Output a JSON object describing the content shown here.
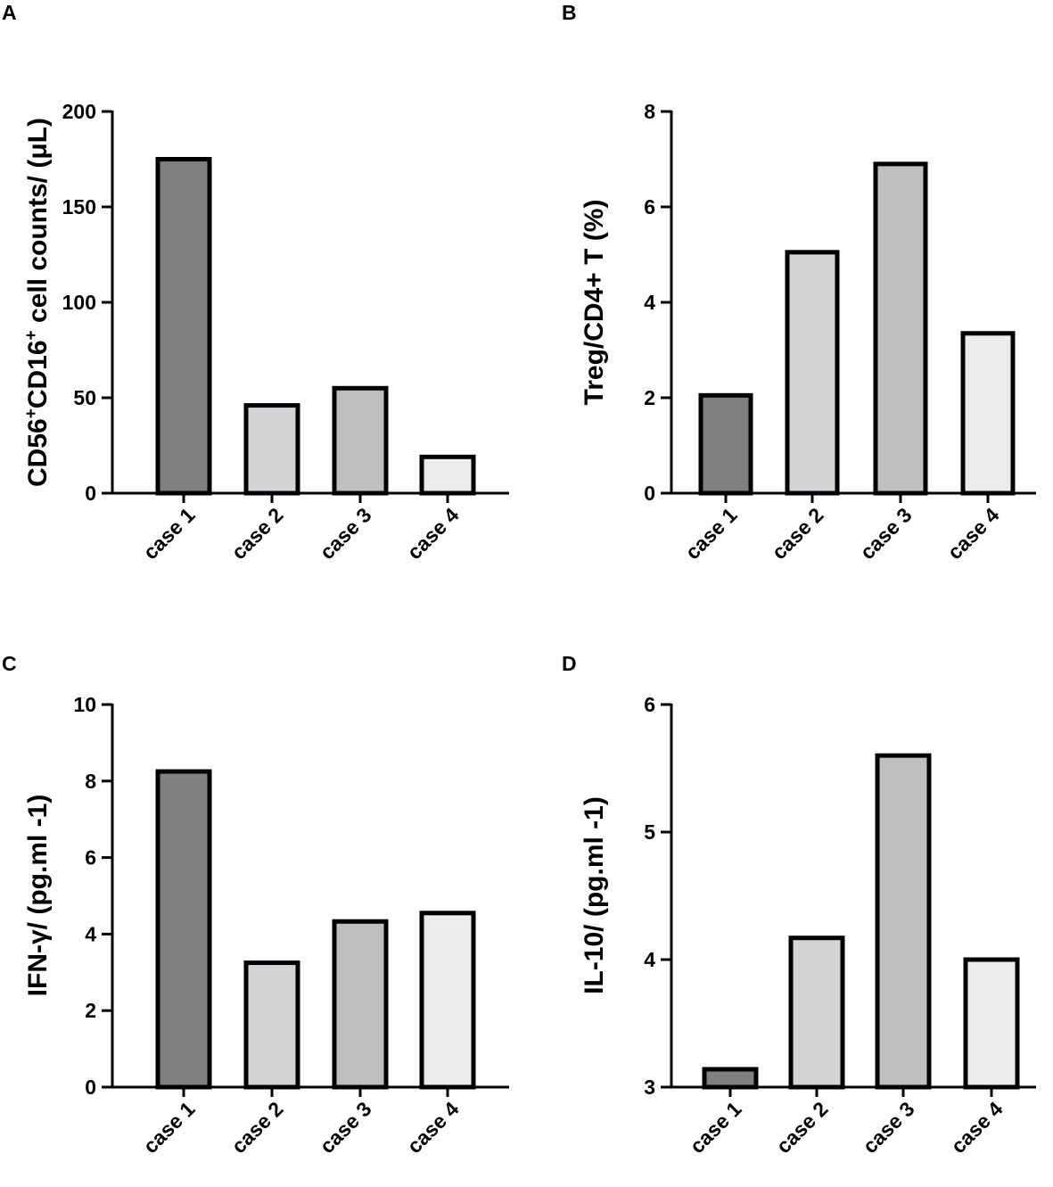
{
  "chart_data": [
    {
      "panel": "A",
      "type": "bar",
      "categories": [
        "case 1",
        "case 2",
        "case 3",
        "case 4"
      ],
      "values": [
        175,
        46,
        55,
        19
      ],
      "bar_colors": [
        "#808080",
        "#d4d4d6",
        "#bfbfbf",
        "#ebebeb"
      ],
      "ylabel_parts": [
        "CD56",
        "+",
        "CD16",
        "+",
        " cell counts/ (μL)"
      ],
      "ylim": [
        0,
        200
      ],
      "yticks": [
        0,
        50,
        100,
        150,
        200
      ],
      "grid": false
    },
    {
      "panel": "B",
      "type": "bar",
      "categories": [
        "case 1",
        "case 2",
        "case 3",
        "case 4"
      ],
      "values": [
        2.05,
        5.05,
        6.9,
        3.35
      ],
      "bar_colors": [
        "#808080",
        "#d4d4d6",
        "#bfbfbf",
        "#ebebeb"
      ],
      "ylabel": "Treg/CD4+ T (%)",
      "ylim": [
        0,
        8
      ],
      "yticks": [
        0,
        2,
        4,
        6,
        8
      ],
      "grid": false
    },
    {
      "panel": "C",
      "type": "bar",
      "categories": [
        "case 1",
        "case 2",
        "case 3",
        "case 4"
      ],
      "values": [
        8.25,
        3.25,
        4.33,
        4.55
      ],
      "bar_colors": [
        "#808080",
        "#d4d4d6",
        "#bfbfbf",
        "#ebebeb"
      ],
      "ylabel": "IFN-γ/ (pg.ml -1)",
      "ylim": [
        0,
        10
      ],
      "yticks": [
        0,
        2,
        4,
        6,
        8,
        10
      ],
      "grid": false
    },
    {
      "panel": "D",
      "type": "bar",
      "categories": [
        "case 1",
        "case 2",
        "case 3",
        "case 4"
      ],
      "values": [
        3.14,
        4.17,
        5.6,
        4.0
      ],
      "bar_colors": [
        "#808080",
        "#d4d4d6",
        "#bfbfbf",
        "#ebebeb"
      ],
      "ylabel": "IL-10/ (pg.ml -1)",
      "ylim": [
        3,
        6
      ],
      "yticks": [
        3,
        4,
        5,
        6
      ],
      "grid": false
    }
  ]
}
